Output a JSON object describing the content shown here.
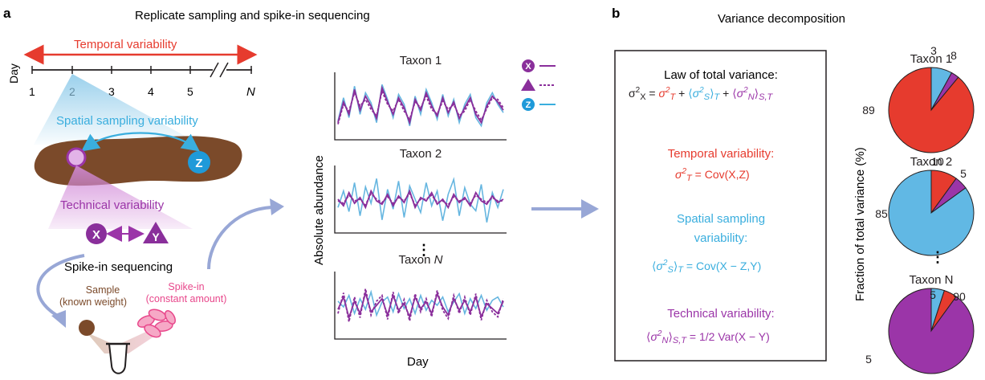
{
  "panel_a": {
    "letter": "a",
    "title": "Replicate sampling and spike-in sequencing",
    "temporal_label": "Temporal variability",
    "day_axis_label": "Day",
    "day_ticks": [
      "1",
      "2",
      "3",
      "4",
      "5",
      "N"
    ],
    "spatial_label": "Spatial sampling variability",
    "sample_z": "Z",
    "technical_label": "Technical variability",
    "replicate_x": "X",
    "replicate_y": "Y",
    "spike_in_title": "Spike-in sequencing",
    "sample_label_1": "Sample",
    "sample_label_2": "(known weight)",
    "spikein_label_1": "Spike-in",
    "spikein_label_2": "(constant amount)",
    "plots_ylabel": "Absolute abundance",
    "plots_xlabel": "Day",
    "ellipsis": "⋮",
    "legend": [
      {
        "symbol": "X",
        "style": "solid",
        "color": "#8a2f9b"
      },
      {
        "symbol": "▲",
        "style": "dashed",
        "color": "#8a2f9b"
      },
      {
        "symbol": "Z",
        "style": "solid",
        "color": "#4bb2e0"
      }
    ],
    "plots": [
      {
        "title": "Taxon 1",
        "X": [
          30,
          55,
          40,
          70,
          45,
          62,
          50,
          35,
          72,
          55,
          40,
          60,
          48,
          30,
          58,
          45,
          66,
          50,
          38,
          60,
          42,
          55,
          35,
          48,
          60,
          40,
          30,
          50,
          62,
          55,
          45
        ],
        "Y": [
          28,
          52,
          44,
          66,
          50,
          58,
          46,
          38,
          68,
          52,
          44,
          58,
          44,
          34,
          55,
          48,
          62,
          46,
          40,
          56,
          46,
          52,
          38,
          44,
          58,
          44,
          33,
          47,
          60,
          58,
          48
        ],
        "Z": [
          32,
          60,
          36,
          74,
          40,
          66,
          54,
          30,
          76,
          58,
          36,
          64,
          52,
          26,
          62,
          40,
          70,
          54,
          34,
          64,
          38,
          58,
          30,
          52,
          64,
          36,
          26,
          54,
          66,
          52,
          42
        ]
      },
      {
        "title": "Taxon 2",
        "X": [
          50,
          42,
          58,
          45,
          52,
          40,
          60,
          48,
          44,
          56,
          42,
          54,
          46,
          60,
          40,
          52,
          48,
          58,
          44,
          50,
          40,
          56,
          46,
          52,
          42,
          58,
          48,
          44,
          54,
          46,
          50
        ],
        "Y": [
          48,
          45,
          55,
          48,
          50,
          43,
          57,
          50,
          46,
          53,
          45,
          52,
          48,
          57,
          43,
          50,
          50,
          55,
          46,
          48,
          43,
          53,
          48,
          50,
          45,
          55,
          50,
          46,
          52,
          48,
          48
        ],
        "Z": [
          40,
          60,
          35,
          70,
          30,
          65,
          45,
          75,
          25,
          62,
          38,
          72,
          28,
          66,
          50,
          34,
          70,
          42,
          60,
          24,
          56,
          74,
          30,
          64,
          44,
          36,
          68,
          22,
          58,
          40,
          62
        ]
      },
      {
        "title": "Taxon N",
        "title_prefix": "Taxon ",
        "title_var": "N",
        "X": [
          45,
          60,
          35,
          55,
          40,
          65,
          42,
          50,
          58,
          38,
          62,
          44,
          52,
          36,
          60,
          46,
          54,
          40,
          64,
          48,
          38,
          58,
          44,
          56,
          42,
          60,
          36,
          52,
          46,
          40,
          55
        ],
        "Y": [
          40,
          65,
          30,
          60,
          35,
          70,
          38,
          55,
          62,
          33,
          66,
          40,
          57,
          31,
          64,
          42,
          58,
          36,
          68,
          44,
          34,
          62,
          40,
          60,
          38,
          64,
          32,
          56,
          42,
          36,
          58
        ],
        "Z": [
          55,
          48,
          62,
          40,
          58,
          45,
          66,
          38,
          54,
          60,
          42,
          64,
          46,
          58,
          40,
          62,
          44,
          56,
          50,
          60,
          42,
          54,
          64,
          40,
          58,
          46,
          62,
          44,
          56,
          60,
          48
        ]
      }
    ]
  },
  "panel_b": {
    "letter": "b",
    "title": "Variance decomposition",
    "law_title": "Law of total variance:",
    "temporal_title": "Temporal variability:",
    "temporal_rhs": " = Cov(X,Z)",
    "spatial_title_1": "Spatial sampling",
    "spatial_title_2": "variability:",
    "spatial_rhs": " = Cov(X − Z,Y)",
    "technical_title": "Technical variability:",
    "technical_rhs": " = 1/2 Var(X − Y)",
    "pie_ylabel": "Fraction of total variance (%)",
    "pie_ellipsis": "⋮"
  },
  "colors": {
    "temporal": "#e63b2e",
    "spatial": "#3aaede",
    "technical": "#9b35a8",
    "soil": "#7b4a2a",
    "arrow": "#98a7d6",
    "spikein": "#e8478b",
    "plot_x": "#8a2f9b",
    "plot_z": "#66b6e0"
  },
  "chart_data": [
    {
      "type": "pie",
      "title": "Taxon 1",
      "labels": [
        "Temporal",
        "Spatial sampling",
        "Technical"
      ],
      "values": [
        89,
        8,
        3
      ],
      "colors": [
        "#e63b2e",
        "#61b8e4",
        "#9b35a8"
      ]
    },
    {
      "type": "pie",
      "title": "Taxon 2",
      "labels": [
        "Temporal",
        "Spatial sampling",
        "Technical"
      ],
      "values": [
        10,
        85,
        5
      ],
      "colors": [
        "#e63b2e",
        "#61b8e4",
        "#9b35a8"
      ]
    },
    {
      "type": "pie",
      "title": "Taxon N",
      "labels": [
        "Temporal",
        "Spatial sampling",
        "Technical"
      ],
      "values": [
        5,
        5,
        90
      ],
      "colors": [
        "#e63b2e",
        "#61b8e4",
        "#9b35a8"
      ]
    }
  ]
}
